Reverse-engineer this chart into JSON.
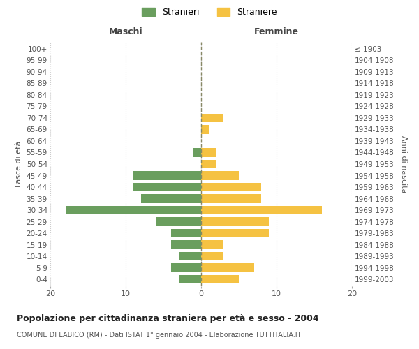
{
  "age_groups": [
    "0-4",
    "5-9",
    "10-14",
    "15-19",
    "20-24",
    "25-29",
    "30-34",
    "35-39",
    "40-44",
    "45-49",
    "50-54",
    "55-59",
    "60-64",
    "65-69",
    "70-74",
    "75-79",
    "80-84",
    "85-89",
    "90-94",
    "95-99",
    "100+"
  ],
  "birth_years": [
    "1999-2003",
    "1994-1998",
    "1989-1993",
    "1984-1988",
    "1979-1983",
    "1974-1978",
    "1969-1973",
    "1964-1968",
    "1959-1963",
    "1954-1958",
    "1949-1953",
    "1944-1948",
    "1939-1943",
    "1934-1938",
    "1929-1933",
    "1924-1928",
    "1919-1923",
    "1914-1918",
    "1909-1913",
    "1904-1908",
    "≤ 1903"
  ],
  "maschi": [
    3,
    4,
    3,
    4,
    4,
    6,
    18,
    8,
    9,
    9,
    0,
    1,
    0,
    0,
    0,
    0,
    0,
    0,
    0,
    0,
    0
  ],
  "femmine": [
    5,
    7,
    3,
    3,
    9,
    9,
    16,
    8,
    8,
    5,
    2,
    2,
    0,
    1,
    3,
    0,
    0,
    0,
    0,
    0,
    0
  ],
  "color_maschi": "#6a9e5e",
  "color_femmine": "#f5c242",
  "title": "Popolazione per cittadinanza straniera per età e sesso - 2004",
  "subtitle": "COMUNE DI LABICO (RM) - Dati ISTAT 1° gennaio 2004 - Elaborazione TUTTITALIA.IT",
  "xlabel_left": "Maschi",
  "xlabel_right": "Femmine",
  "ylabel_left": "Fasce di età",
  "ylabel_right": "Anni di nascita",
  "legend_maschi": "Stranieri",
  "legend_femmine": "Straniere",
  "xlim": 20,
  "background_color": "#ffffff",
  "grid_color": "#cccccc"
}
